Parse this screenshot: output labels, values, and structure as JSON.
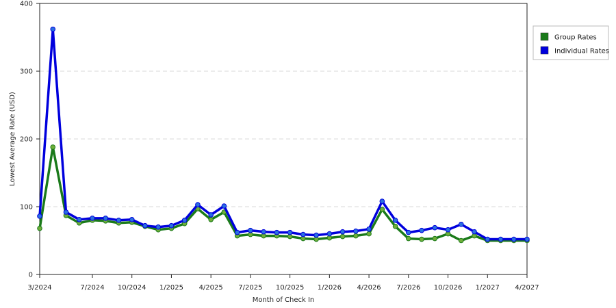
{
  "chart_data": {
    "type": "line",
    "xlabel": "Month of Check In",
    "ylabel": "Lowest Average Rate (USD)",
    "ylim": [
      0,
      400
    ],
    "yticks": [
      0,
      100,
      200,
      300,
      400
    ],
    "grid": "horizontal dashed",
    "legend_position": "top-right",
    "x_tick_labels": [
      "3/2024",
      "7/2024",
      "10/2024",
      "1/2025",
      "4/2025",
      "7/2025",
      "10/2025",
      "1/2026",
      "4/2026",
      "7/2026",
      "10/2026",
      "1/2027",
      "4/2027"
    ],
    "x_tick_month_index": [
      0,
      4,
      7,
      10,
      13,
      16,
      19,
      22,
      25,
      28,
      31,
      34,
      37
    ],
    "x_months": [
      "3/2024",
      "4/2024",
      "5/2024",
      "6/2024",
      "7/2024",
      "8/2024",
      "9/2024",
      "10/2024",
      "11/2024",
      "12/2024",
      "1/2025",
      "2/2025",
      "3/2025",
      "4/2025",
      "5/2025",
      "6/2025",
      "7/2025",
      "8/2025",
      "9/2025",
      "10/2025",
      "11/2025",
      "12/2025",
      "1/2026",
      "2/2026",
      "3/2026",
      "4/2026",
      "5/2026",
      "6/2026",
      "7/2026",
      "8/2026",
      "9/2026",
      "10/2026",
      "11/2026",
      "12/2026",
      "1/2027",
      "2/2027",
      "3/2027",
      "4/2027"
    ],
    "series": [
      {
        "name": "Group Rates",
        "color": "#1a7a1a",
        "marker_color": "#6fae3a",
        "values": [
          68,
          188,
          87,
          76,
          80,
          79,
          76,
          77,
          71,
          66,
          68,
          75,
          97,
          81,
          92,
          57,
          59,
          57,
          57,
          56,
          53,
          52,
          54,
          56,
          57,
          60,
          96,
          71,
          53,
          52,
          53,
          60,
          50,
          57,
          50,
          50,
          50,
          50
        ]
      },
      {
        "name": "Individual Rates",
        "color": "#0000dd",
        "marker_color": "#2a6fe0",
        "values": [
          86,
          362,
          92,
          81,
          83,
          83,
          80,
          81,
          72,
          70,
          72,
          80,
          103,
          88,
          101,
          62,
          65,
          63,
          62,
          62,
          59,
          58,
          60,
          63,
          64,
          67,
          108,
          80,
          62,
          65,
          69,
          66,
          74,
          63,
          52,
          52,
          52,
          52
        ]
      }
    ]
  }
}
